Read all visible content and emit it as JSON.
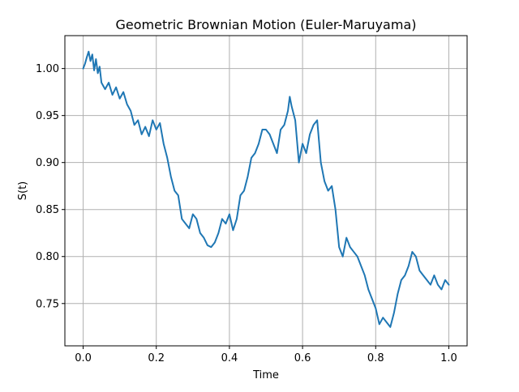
{
  "chart_data": {
    "type": "line",
    "title": "Geometric Brownian Motion (Euler-Maruyama)",
    "xlabel": "Time",
    "ylabel": "S(t)",
    "xlim": [
      -0.05,
      1.05
    ],
    "ylim": [
      0.705,
      1.035
    ],
    "grid": true,
    "legend": "none",
    "line_color": "#1f77b4",
    "x_ticks": [
      {
        "value": 0.0,
        "label": "0.0"
      },
      {
        "value": 0.2,
        "label": "0.2"
      },
      {
        "value": 0.4,
        "label": "0.4"
      },
      {
        "value": 0.6,
        "label": "0.6"
      },
      {
        "value": 0.8,
        "label": "0.8"
      },
      {
        "value": 1.0,
        "label": "1.0"
      }
    ],
    "y_ticks": [
      {
        "value": 0.75,
        "label": "0.75"
      },
      {
        "value": 0.8,
        "label": "0.80"
      },
      {
        "value": 0.85,
        "label": "0.85"
      },
      {
        "value": 0.9,
        "label": "0.90"
      },
      {
        "value": 0.95,
        "label": "0.95"
      },
      {
        "value": 1.0,
        "label": "1.00"
      }
    ],
    "series": [
      {
        "x": [
          0.0,
          0.005,
          0.01,
          0.015,
          0.02,
          0.025,
          0.03,
          0.035,
          0.04,
          0.045,
          0.05,
          0.06,
          0.07,
          0.08,
          0.09,
          0.1,
          0.11,
          0.12,
          0.13,
          0.14,
          0.15,
          0.16,
          0.17,
          0.18,
          0.19,
          0.2,
          0.21,
          0.22,
          0.23,
          0.24,
          0.25,
          0.26,
          0.27,
          0.28,
          0.29,
          0.3,
          0.31,
          0.32,
          0.33,
          0.34,
          0.35,
          0.36,
          0.37,
          0.38,
          0.39,
          0.4,
          0.41,
          0.42,
          0.43,
          0.44,
          0.45,
          0.46,
          0.47,
          0.48,
          0.49,
          0.5,
          0.51,
          0.52,
          0.53,
          0.54,
          0.55,
          0.56,
          0.565,
          0.57,
          0.58,
          0.59,
          0.6,
          0.61,
          0.62,
          0.63,
          0.64,
          0.65,
          0.66,
          0.67,
          0.68,
          0.69,
          0.7,
          0.71,
          0.72,
          0.73,
          0.74,
          0.75,
          0.76,
          0.77,
          0.78,
          0.79,
          0.8,
          0.81,
          0.82,
          0.83,
          0.84,
          0.85,
          0.86,
          0.87,
          0.88,
          0.89,
          0.9,
          0.91,
          0.92,
          0.93,
          0.94,
          0.95,
          0.96,
          0.97,
          0.98,
          0.99,
          1.0
        ],
        "y": [
          1.0,
          1.005,
          1.012,
          1.018,
          1.008,
          1.015,
          0.998,
          1.01,
          0.995,
          1.002,
          0.985,
          0.978,
          0.985,
          0.972,
          0.98,
          0.968,
          0.975,
          0.962,
          0.955,
          0.94,
          0.945,
          0.93,
          0.938,
          0.928,
          0.945,
          0.935,
          0.942,
          0.92,
          0.905,
          0.885,
          0.87,
          0.865,
          0.84,
          0.835,
          0.83,
          0.845,
          0.84,
          0.825,
          0.82,
          0.812,
          0.81,
          0.815,
          0.825,
          0.84,
          0.835,
          0.845,
          0.828,
          0.84,
          0.865,
          0.87,
          0.885,
          0.905,
          0.91,
          0.92,
          0.935,
          0.935,
          0.93,
          0.92,
          0.91,
          0.935,
          0.94,
          0.955,
          0.97,
          0.96,
          0.945,
          0.9,
          0.92,
          0.91,
          0.93,
          0.94,
          0.945,
          0.9,
          0.88,
          0.87,
          0.875,
          0.85,
          0.81,
          0.8,
          0.82,
          0.81,
          0.805,
          0.8,
          0.79,
          0.78,
          0.765,
          0.755,
          0.745,
          0.728,
          0.735,
          0.73,
          0.725,
          0.74,
          0.76,
          0.775,
          0.78,
          0.79,
          0.805,
          0.8,
          0.785,
          0.78,
          0.775,
          0.77,
          0.78,
          0.77,
          0.765,
          0.775,
          0.77
        ]
      }
    ]
  }
}
